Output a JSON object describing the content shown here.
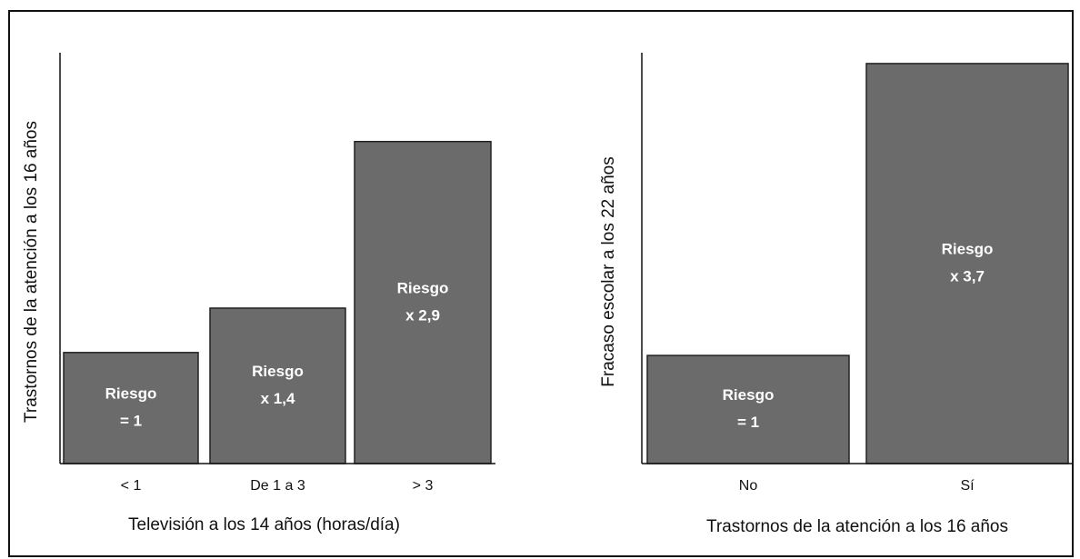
{
  "chart_data": [
    {
      "type": "bar",
      "color": "#6b6b6b",
      "x_label": "Televisión a los 14 años (horas/día)",
      "y_label": "Trastornos de la atención a los 16 años",
      "categories": [
        "< 1",
        "De 1 a 3",
        "> 3"
      ],
      "values": [
        1,
        1.4,
        2.9
      ],
      "value_labels": [
        [
          "Riesgo",
          "= 1"
        ],
        [
          "Riesgo",
          "x 1,4"
        ],
        [
          "Riesgo",
          "x 2,9"
        ]
      ],
      "ylim": [
        0,
        3.7
      ]
    },
    {
      "type": "bar",
      "color": "#6b6b6b",
      "x_label": "Trastornos de la atención a los 16 años",
      "y_label": "Fracaso escolar a los 22 años",
      "categories": [
        "No",
        "Sí"
      ],
      "values": [
        1,
        3.7
      ],
      "value_labels": [
        [
          "Riesgo",
          "= 1"
        ],
        [
          "Riesgo",
          "x 3,7"
        ]
      ],
      "ylim": [
        0,
        3.8
      ]
    }
  ]
}
